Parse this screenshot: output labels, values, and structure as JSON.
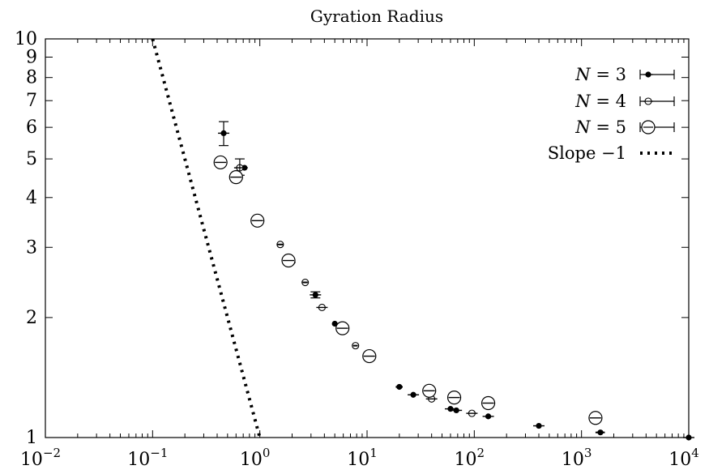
{
  "chart_data": {
    "type": "scatter",
    "title": "Gyration Radius",
    "xlabel": "",
    "ylabel": "",
    "xscale": "log",
    "yscale": "log",
    "xlim": [
      0.01,
      10000
    ],
    "ylim": [
      1,
      10
    ],
    "x_ticks": [
      {
        "base": "10",
        "exp": "−2",
        "value": 0.01
      },
      {
        "base": "10",
        "exp": "−1",
        "value": 0.1
      },
      {
        "base": "10",
        "exp": "0",
        "value": 1
      },
      {
        "base": "10",
        "exp": "1",
        "value": 10
      },
      {
        "base": "10",
        "exp": "2",
        "value": 100
      },
      {
        "base": "10",
        "exp": "3",
        "value": 1000
      },
      {
        "base": "10",
        "exp": "4",
        "value": 10000
      }
    ],
    "y_ticks": [
      {
        "label": "1",
        "value": 1
      },
      {
        "label": "2",
        "value": 2
      },
      {
        "label": "3",
        "value": 3
      },
      {
        "label": "4",
        "value": 4
      },
      {
        "label": "5",
        "value": 5
      },
      {
        "label": "6",
        "value": 6
      },
      {
        "label": "7",
        "value": 7
      },
      {
        "label": "8",
        "value": 8
      },
      {
        "label": "9",
        "value": 9
      },
      {
        "label": "10",
        "value": 10
      }
    ],
    "grid": false,
    "legend_position": "top-right",
    "series": [
      {
        "name_var": "N",
        "name_val": "= 3",
        "marker": "filled-dot",
        "points": [
          {
            "x": 0.46,
            "y": 5.8,
            "ylo": 5.4,
            "yhi": 6.2
          },
          {
            "x": 0.72,
            "y": 4.75,
            "xlo": 0.67,
            "xhi": 0.77
          },
          {
            "x": 2.0,
            "y": 2.75,
            "xlo": 1.85,
            "xhi": 2.15
          },
          {
            "x": 3.3,
            "y": 2.28,
            "ylo": 2.24,
            "yhi": 2.32
          },
          {
            "x": 5.0,
            "y": 1.93,
            "xlo": 4.75,
            "xhi": 5.25
          },
          {
            "x": 5.6,
            "y": 1.88,
            "xlo": 5.3,
            "xhi": 5.9
          },
          {
            "x": 20,
            "y": 1.34,
            "xlo": 18.5,
            "xhi": 21.5
          },
          {
            "x": 27,
            "y": 1.28
          },
          {
            "x": 60,
            "y": 1.18
          },
          {
            "x": 68,
            "y": 1.17
          },
          {
            "x": 135,
            "y": 1.13
          },
          {
            "x": 400,
            "y": 1.07
          },
          {
            "x": 1500,
            "y": 1.03,
            "xlo": 1350,
            "xhi": 1650
          },
          {
            "x": 10000,
            "y": 1.0
          }
        ]
      },
      {
        "name_var": "N",
        "name_val": "= 4",
        "marker": "small-circle",
        "points": [
          {
            "x": 0.65,
            "y": 4.75,
            "ylo": 4.55,
            "yhi": 5.0
          },
          {
            "x": 1.55,
            "y": 3.05,
            "xlo": 1.45,
            "xhi": 1.65
          },
          {
            "x": 2.65,
            "y": 2.45,
            "xlo": 2.5,
            "xhi": 2.8
          },
          {
            "x": 3.8,
            "y": 2.12
          },
          {
            "x": 7.8,
            "y": 1.7,
            "xlo": 7.4,
            "xhi": 8.2
          },
          {
            "x": 40,
            "y": 1.25
          },
          {
            "x": 95,
            "y": 1.15
          }
        ]
      },
      {
        "name_var": "N",
        "name_val": "= 5",
        "marker": "large-circle",
        "points": [
          {
            "x": 0.43,
            "y": 4.9
          },
          {
            "x": 0.6,
            "y": 4.5
          },
          {
            "x": 0.95,
            "y": 3.5
          },
          {
            "x": 1.85,
            "y": 2.78
          },
          {
            "x": 5.9,
            "y": 1.88
          },
          {
            "x": 10.5,
            "y": 1.6
          },
          {
            "x": 38,
            "y": 1.31
          },
          {
            "x": 65,
            "y": 1.26
          },
          {
            "x": 135,
            "y": 1.22
          },
          {
            "x": 1350,
            "y": 1.12
          }
        ]
      },
      {
        "name": "Slope −1",
        "marker": "dotted-line",
        "line": [
          [
            0.1,
            10
          ],
          [
            1.0,
            1.0
          ]
        ]
      }
    ]
  }
}
